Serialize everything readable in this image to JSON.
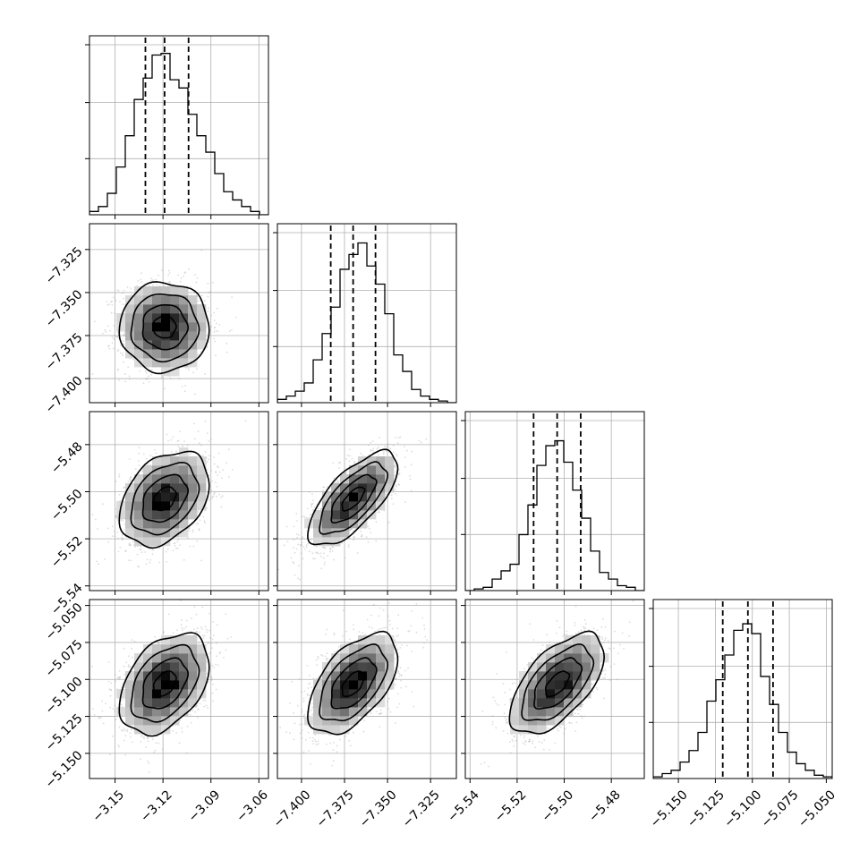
{
  "chart_data": {
    "type": "corner",
    "parameters": [
      {
        "range": [
          -3.166,
          -3.054
        ],
        "ticks": [
          -3.15,
          -3.12,
          -3.09,
          -3.06
        ],
        "tick_labels": [
          "−3.15",
          "−3.12",
          "−3.09",
          "−3.06"
        ],
        "quantiles": [
          -3.131,
          -3.119,
          -3.104
        ],
        "hist_bins": [
          0.02,
          0.05,
          0.13,
          0.29,
          0.48,
          0.7,
          0.83,
          0.97,
          0.98,
          0.82,
          0.77,
          0.61,
          0.48,
          0.38,
          0.25,
          0.14,
          0.09,
          0.05,
          0.02,
          0.0
        ],
        "mean": -3.119,
        "sigma": 0.014
      },
      {
        "range": [
          -7.414,
          -7.31
        ],
        "ticks": [
          -7.4,
          -7.375,
          -7.35,
          -7.325
        ],
        "tick_labels": [
          "−7.400",
          "−7.375",
          "−7.350",
          "−7.325"
        ],
        "quantiles": [
          -7.383,
          -7.37,
          -7.357
        ],
        "hist_bins": [
          0.02,
          0.04,
          0.07,
          0.12,
          0.26,
          0.42,
          0.58,
          0.81,
          0.9,
          0.97,
          0.83,
          0.72,
          0.54,
          0.29,
          0.19,
          0.08,
          0.04,
          0.02,
          0.01,
          0.0
        ],
        "mean": -7.37,
        "sigma": 0.013
      },
      {
        "range": [
          -5.542,
          -5.466
        ],
        "ticks": [
          -5.54,
          -5.52,
          -5.5,
          -5.48
        ],
        "tick_labels": [
          "−5.54",
          "−5.52",
          "−5.50",
          "−5.48"
        ],
        "quantiles": [
          -5.513,
          -5.503,
          -5.493
        ],
        "hist_bins": [
          0.0,
          0.01,
          0.02,
          0.07,
          0.12,
          0.16,
          0.34,
          0.52,
          0.76,
          0.88,
          0.91,
          0.78,
          0.61,
          0.44,
          0.24,
          0.11,
          0.07,
          0.03,
          0.02,
          0.0
        ],
        "mean": -5.503,
        "sigma": 0.01
      },
      {
        "range": [
          -5.167,
          -5.046
        ],
        "ticks": [
          -5.15,
          -5.125,
          -5.1,
          -5.075,
          -5.05
        ],
        "tick_labels": [
          "−5.150",
          "−5.125",
          "−5.100",
          "−5.075",
          "−5.050"
        ],
        "quantiles": [
          -5.12,
          -5.103,
          -5.086
        ],
        "hist_bins": [
          0.01,
          0.03,
          0.05,
          0.1,
          0.17,
          0.28,
          0.47,
          0.6,
          0.75,
          0.9,
          0.94,
          0.88,
          0.62,
          0.45,
          0.28,
          0.16,
          0.09,
          0.05,
          0.02,
          0.01
        ],
        "mean": -5.103,
        "sigma": 0.017
      }
    ],
    "correlations": [
      [
        1.0,
        0.0,
        0.35,
        0.4
      ],
      [
        0.0,
        1.0,
        0.7,
        0.55
      ],
      [
        0.35,
        0.7,
        1.0,
        0.6
      ],
      [
        0.4,
        0.55,
        0.6,
        1.0
      ]
    ],
    "contour_levels_sigma": [
      0.5,
      1.0,
      1.5,
      2.0
    ],
    "grid": true,
    "colors": {
      "line": "#000000",
      "grid": "#b0b0b0",
      "points": "#9a9a9a"
    }
  }
}
